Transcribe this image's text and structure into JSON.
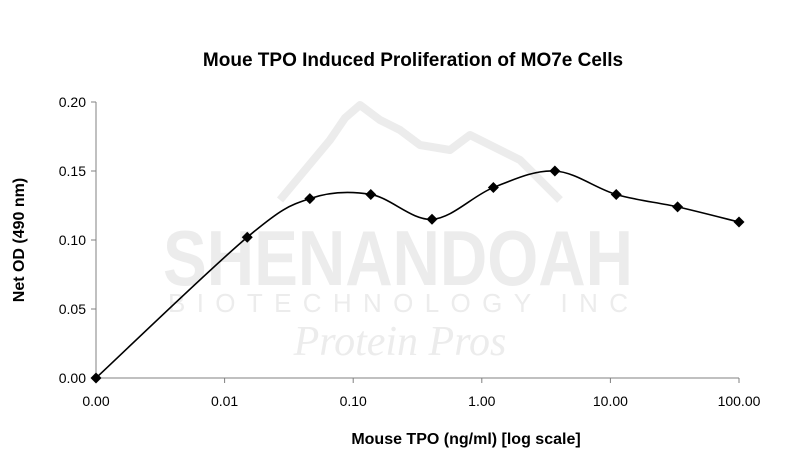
{
  "chart_data": {
    "type": "line",
    "title": "Moue TPO Induced Proliferation of MO7e Cells",
    "xlabel": "Mouse TPO (ng/ml) [log scale]",
    "ylabel": "Net OD (490 nm)",
    "x_scale": "log (category-style ticks)",
    "x_tick_labels": [
      "0.00",
      "0.01",
      "0.10",
      "1.00",
      "10.00",
      "100.00"
    ],
    "y_tick_labels": [
      "0.00",
      "0.05",
      "0.10",
      "0.15",
      "0.20"
    ],
    "ylim": [
      0,
      0.2
    ],
    "y_ticks": [
      0,
      0.05,
      0.1,
      0.15,
      0.2
    ],
    "grid": false,
    "smooth": true,
    "marker": "diamond",
    "series": [
      {
        "name": "Net OD",
        "x": [
          0.001,
          0.015,
          0.046,
          0.137,
          0.41,
          1.23,
          3.7,
          11.1,
          33.3,
          100
        ],
        "values": [
          0.0,
          0.102,
          0.13,
          0.133,
          0.115,
          0.138,
          0.15,
          0.133,
          0.124,
          0.113
        ]
      }
    ]
  },
  "watermark": {
    "line1": "SHENANDOAH",
    "line2": "BIOTECHNOLOGY INC",
    "line3": "Protein Pros"
  }
}
